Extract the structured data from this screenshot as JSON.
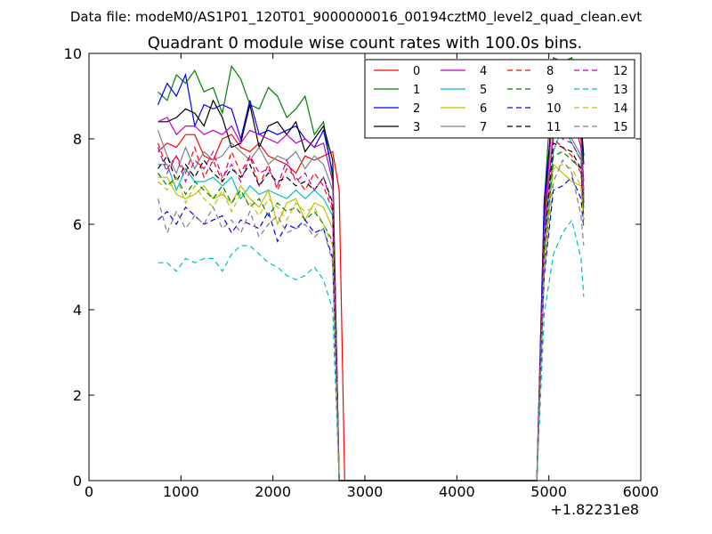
{
  "figure": {
    "suptitle": "Data file: modeM0/AS1P01_120T01_9000000016_00194cztM0_level2_quad_clean.evt"
  },
  "chart_data": {
    "type": "line",
    "title": "Quadrant 0 module wise count rates with 100.0s bins.",
    "xlabel": "",
    "ylabel": "",
    "x_offset_label": "+1.82231e8",
    "xlim": [
      0,
      6000
    ],
    "ylim": [
      0,
      10
    ],
    "xticks": [
      "0",
      "1000",
      "2000",
      "3000",
      "4000",
      "5000",
      "6000"
    ],
    "yticks": [
      "0",
      "2",
      "4",
      "6",
      "8",
      "10"
    ],
    "grid": false,
    "legend_position": "top-right",
    "legend_columns": 4,
    "x": [
      750,
      850,
      950,
      1050,
      1150,
      1250,
      1350,
      1450,
      1550,
      1650,
      1750,
      1850,
      1950,
      2050,
      2150,
      2250,
      2350,
      2450,
      2550,
      2650,
      2720,
      2780,
      2880,
      2980,
      3080,
      3180,
      3280,
      3380,
      3480,
      3580,
      3680,
      3780,
      3880,
      3980,
      4080,
      4180,
      4280,
      4380,
      4480,
      4580,
      4680,
      4780,
      4870,
      4950,
      5050,
      5150,
      5250,
      5350,
      5380
    ],
    "series": [
      {
        "name": "0",
        "color": "#ff0000",
        "dash": "solid",
        "values": [
          7.7,
          7.9,
          7.8,
          8.1,
          8.1,
          7.6,
          7.5,
          8.0,
          8.1,
          7.8,
          7.7,
          7.9,
          7.6,
          7.5,
          7.4,
          7.2,
          7.6,
          7.5,
          7.6,
          7.7,
          6.8,
          0,
          0,
          0,
          0,
          0,
          0,
          0,
          0,
          0,
          0,
          0,
          0,
          0,
          0,
          0,
          0,
          0,
          0,
          0,
          0,
          0,
          0,
          6.2,
          9.0,
          8.8,
          8.6,
          8.0,
          7.0
        ]
      },
      {
        "name": "1",
        "color": "#008000",
        "dash": "solid",
        "values": [
          9.1,
          8.9,
          9.5,
          9.3,
          9.6,
          9.1,
          9.2,
          8.6,
          9.7,
          9.4,
          8.8,
          8.7,
          9.2,
          9.0,
          8.5,
          8.7,
          9.0,
          8.1,
          8.4,
          7.1,
          0,
          0,
          0,
          0,
          0,
          0,
          0,
          0,
          0,
          0,
          0,
          0,
          0,
          0,
          0,
          0,
          0,
          0,
          0,
          0,
          0,
          0,
          0,
          6.5,
          9.9,
          9.8,
          9.9,
          8.6,
          6.6
        ]
      },
      {
        "name": "2",
        "color": "#0000ff",
        "dash": "solid",
        "values": [
          8.8,
          9.3,
          9.0,
          9.5,
          8.3,
          8.8,
          8.7,
          8.8,
          8.7,
          8.0,
          8.9,
          8.1,
          8.2,
          8.1,
          8.2,
          8.3,
          8.0,
          7.8,
          8.2,
          7.2,
          0,
          0,
          0,
          0,
          0,
          0,
          0,
          0,
          0,
          0,
          0,
          0,
          0,
          0,
          0,
          0,
          0,
          0,
          0,
          0,
          0,
          0,
          0,
          6.6,
          8.8,
          9.4,
          9.7,
          8.6,
          7.4
        ]
      },
      {
        "name": "3",
        "color": "#000000",
        "dash": "solid",
        "values": [
          8.4,
          8.4,
          8.5,
          8.7,
          8.6,
          8.3,
          8.9,
          8.5,
          7.8,
          7.9,
          8.8,
          7.8,
          8.3,
          8.4,
          8.1,
          8.4,
          7.7,
          8.0,
          8.3,
          7.5,
          0,
          0,
          0,
          0,
          0,
          0,
          0,
          0,
          0,
          0,
          0,
          0,
          0,
          0,
          0,
          0,
          0,
          0,
          0,
          0,
          0,
          0,
          0,
          6.0,
          9.2,
          8.7,
          9.0,
          8.4,
          7.6
        ]
      },
      {
        "name": "4",
        "color": "#bf00bf",
        "dash": "solid",
        "values": [
          8.4,
          8.5,
          8.1,
          8.3,
          8.3,
          8.1,
          8.2,
          8.1,
          8.3,
          7.9,
          8.2,
          8.1,
          8.0,
          7.9,
          8.1,
          7.9,
          8.0,
          7.8,
          7.9,
          7.0,
          0,
          0,
          0,
          0,
          0,
          0,
          0,
          0,
          0,
          0,
          0,
          0,
          0,
          0,
          0,
          0,
          0,
          0,
          0,
          0,
          0,
          0,
          0,
          5.9,
          8.9,
          8.5,
          8.6,
          7.8,
          6.8
        ]
      },
      {
        "name": "5",
        "color": "#00bfbf",
        "dash": "solid",
        "values": [
          7.4,
          7.4,
          6.8,
          7.3,
          7.0,
          7.0,
          7.1,
          6.9,
          7.1,
          6.6,
          6.9,
          6.7,
          6.8,
          6.7,
          6.6,
          6.8,
          6.6,
          6.8,
          6.6,
          6.2,
          0,
          0,
          0,
          0,
          0,
          0,
          0,
          0,
          0,
          0,
          0,
          0,
          0,
          0,
          0,
          0,
          0,
          0,
          0,
          0,
          0,
          0,
          0,
          5.4,
          7.7,
          8.3,
          7.9,
          7.5,
          6.4
        ]
      },
      {
        "name": "6",
        "color": "#bfbf00",
        "dash": "solid",
        "values": [
          7.1,
          7.1,
          6.7,
          6.6,
          6.7,
          6.9,
          6.6,
          6.7,
          6.5,
          6.9,
          6.6,
          6.4,
          6.8,
          6.0,
          6.5,
          6.6,
          6.1,
          6.5,
          6.4,
          5.9,
          0,
          0,
          0,
          0,
          0,
          0,
          0,
          0,
          0,
          0,
          0,
          0,
          0,
          0,
          0,
          0,
          0,
          0,
          0,
          0,
          0,
          0,
          0,
          5.2,
          7.4,
          7.2,
          7.0,
          6.9,
          6.2
        ]
      },
      {
        "name": "7",
        "color": "#808080",
        "dash": "solid",
        "values": [
          8.2,
          7.6,
          7.2,
          7.8,
          7.3,
          7.7,
          7.5,
          7.6,
          7.9,
          7.7,
          7.5,
          7.8,
          7.4,
          7.6,
          7.5,
          7.7,
          7.3,
          7.6,
          7.4,
          6.8,
          0,
          0,
          0,
          0,
          0,
          0,
          0,
          0,
          0,
          0,
          0,
          0,
          0,
          0,
          0,
          0,
          0,
          0,
          0,
          0,
          0,
          0,
          0,
          5.8,
          8.3,
          8.1,
          8.0,
          7.6,
          6.6
        ]
      },
      {
        "name": "8",
        "color": "#ff0000",
        "dash": "dashed",
        "values": [
          7.9,
          7.3,
          7.6,
          7.2,
          7.8,
          7.1,
          7.5,
          7.0,
          7.7,
          7.2,
          7.6,
          6.9,
          7.4,
          6.8,
          7.3,
          7.1,
          6.8,
          7.2,
          6.9,
          6.3,
          0,
          0,
          0,
          0,
          0,
          0,
          0,
          0,
          0,
          0,
          0,
          0,
          0,
          0,
          0,
          0,
          0,
          0,
          0,
          0,
          0,
          0,
          0,
          5.5,
          8.0,
          7.8,
          7.6,
          7.2,
          6.3
        ]
      },
      {
        "name": "9",
        "color": "#008000",
        "dash": "dashed",
        "values": [
          7.2,
          6.9,
          7.1,
          6.7,
          7.0,
          6.8,
          6.6,
          6.9,
          6.5,
          6.8,
          6.4,
          6.6,
          6.2,
          6.5,
          6.3,
          6.4,
          6.1,
          6.3,
          6.0,
          5.6,
          0,
          0,
          0,
          0,
          0,
          0,
          0,
          0,
          0,
          0,
          0,
          0,
          0,
          0,
          0,
          0,
          0,
          0,
          0,
          0,
          0,
          0,
          0,
          5.0,
          7.6,
          7.7,
          7.5,
          7.3,
          6.1
        ]
      },
      {
        "name": "10",
        "color": "#0000ff",
        "dash": "dashed",
        "values": [
          6.1,
          6.3,
          6.0,
          6.4,
          6.2,
          6.0,
          6.1,
          6.2,
          5.8,
          6.1,
          6.0,
          5.9,
          6.3,
          5.6,
          6.0,
          5.9,
          6.1,
          5.8,
          5.9,
          5.2,
          0,
          0,
          0,
          0,
          0,
          0,
          0,
          0,
          0,
          0,
          0,
          0,
          0,
          0,
          0,
          0,
          0,
          0,
          0,
          0,
          0,
          0,
          0,
          4.8,
          6.8,
          6.9,
          7.1,
          6.6,
          5.9
        ]
      },
      {
        "name": "11",
        "color": "#000000",
        "dash": "dashed",
        "values": [
          7.3,
          7.6,
          7.0,
          7.4,
          7.1,
          7.5,
          7.2,
          7.0,
          7.3,
          7.1,
          7.4,
          6.9,
          7.2,
          7.0,
          7.1,
          6.9,
          7.0,
          6.8,
          7.1,
          6.5,
          0,
          0,
          0,
          0,
          0,
          0,
          0,
          0,
          0,
          0,
          0,
          0,
          0,
          0,
          0,
          0,
          0,
          0,
          0,
          0,
          0,
          0,
          0,
          5.6,
          7.9,
          7.8,
          7.7,
          7.3,
          6.5
        ]
      },
      {
        "name": "12",
        "color": "#bf00bf",
        "dash": "dashed",
        "values": [
          7.8,
          7.2,
          7.6,
          7.0,
          7.5,
          7.3,
          7.7,
          7.1,
          7.4,
          7.0,
          7.6,
          7.2,
          7.3,
          6.9,
          7.5,
          7.0,
          7.2,
          6.8,
          7.1,
          6.4,
          0,
          0,
          0,
          0,
          0,
          0,
          0,
          0,
          0,
          0,
          0,
          0,
          0,
          0,
          0,
          0,
          0,
          0,
          0,
          0,
          0,
          0,
          0,
          5.7,
          8.2,
          8.0,
          7.9,
          7.5,
          6.5
        ]
      },
      {
        "name": "13",
        "color": "#00bfbf",
        "dash": "dashed",
        "values": [
          5.1,
          5.1,
          4.9,
          5.2,
          5.1,
          5.2,
          5.2,
          4.9,
          5.3,
          5.5,
          5.5,
          5.3,
          5.1,
          5.0,
          4.8,
          4.7,
          4.8,
          5.0,
          4.7,
          4.0,
          0,
          0,
          0,
          0,
          0,
          0,
          0,
          0,
          0,
          0,
          0,
          0,
          0,
          0,
          0,
          0,
          0,
          0,
          0,
          0,
          0,
          0,
          0,
          3.9,
          5.3,
          5.8,
          6.1,
          5.2,
          4.3
        ]
      },
      {
        "name": "14",
        "color": "#bfbf00",
        "dash": "dashed",
        "values": [
          7.0,
          6.8,
          7.1,
          6.5,
          6.9,
          6.6,
          6.4,
          6.8,
          6.3,
          6.7,
          6.5,
          6.2,
          6.6,
          6.4,
          6.1,
          6.5,
          6.3,
          6.4,
          6.0,
          5.5,
          0,
          0,
          0,
          0,
          0,
          0,
          0,
          0,
          0,
          0,
          0,
          0,
          0,
          0,
          0,
          0,
          0,
          0,
          0,
          0,
          0,
          0,
          0,
          5.1,
          7.3,
          7.4,
          7.3,
          6.9,
          6.0
        ]
      },
      {
        "name": "15",
        "color": "#808080",
        "dash": "dashed",
        "values": [
          6.6,
          5.8,
          6.3,
          5.9,
          6.2,
          6.0,
          6.4,
          5.9,
          6.1,
          5.8,
          6.3,
          5.7,
          6.0,
          6.2,
          5.8,
          5.9,
          6.0,
          5.7,
          5.9,
          5.1,
          0,
          0,
          0,
          0,
          0,
          0,
          0,
          0,
          0,
          0,
          0,
          0,
          0,
          0,
          0,
          0,
          0,
          0,
          0,
          0,
          0,
          0,
          0,
          4.9,
          7.0,
          7.5,
          7.2,
          6.2,
          5.5
        ]
      }
    ]
  }
}
